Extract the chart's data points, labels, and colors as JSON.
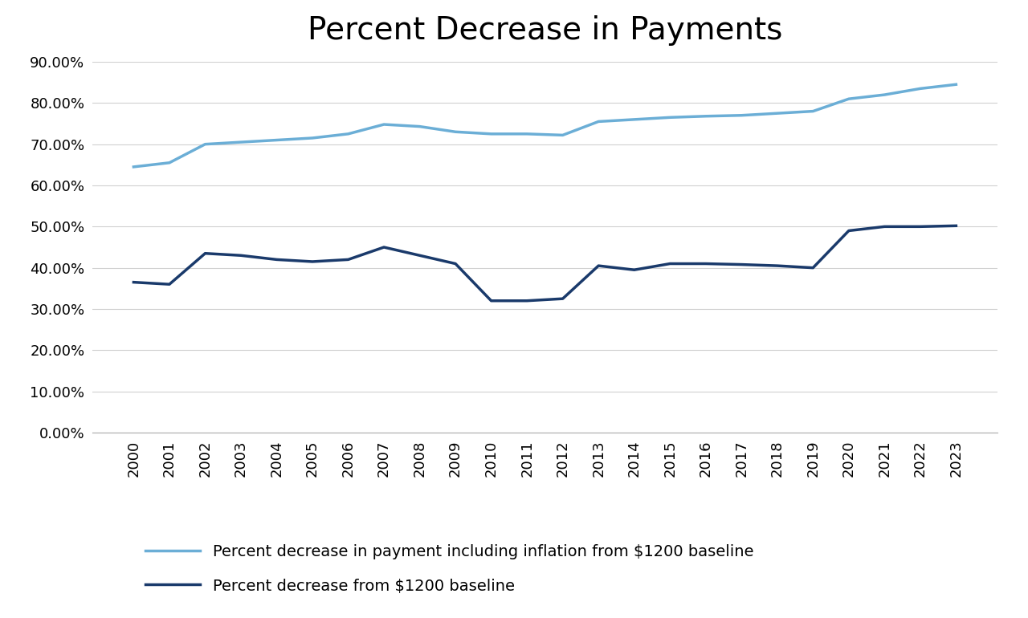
{
  "title": "Percent Decrease in Payments",
  "years": [
    2000,
    2001,
    2002,
    2003,
    2004,
    2005,
    2006,
    2007,
    2008,
    2009,
    2010,
    2011,
    2012,
    2013,
    2014,
    2015,
    2016,
    2017,
    2018,
    2019,
    2020,
    2021,
    2022,
    2023
  ],
  "with_inflation": [
    0.645,
    0.655,
    0.7,
    0.705,
    0.71,
    0.715,
    0.725,
    0.748,
    0.743,
    0.73,
    0.725,
    0.725,
    0.722,
    0.755,
    0.76,
    0.765,
    0.768,
    0.77,
    0.775,
    0.78,
    0.81,
    0.82,
    0.835,
    0.845
  ],
  "without_inflation": [
    0.365,
    0.36,
    0.435,
    0.43,
    0.42,
    0.415,
    0.42,
    0.45,
    0.43,
    0.41,
    0.32,
    0.32,
    0.325,
    0.405,
    0.395,
    0.41,
    0.41,
    0.408,
    0.405,
    0.4,
    0.49,
    0.5,
    0.5,
    0.502
  ],
  "line_color_inflation": "#6baed6",
  "line_color_no_inflation": "#1a3a6b",
  "background_color": "#ffffff",
  "ylim": [
    0.0,
    0.9
  ],
  "yticks": [
    0.0,
    0.1,
    0.2,
    0.3,
    0.4,
    0.5,
    0.6,
    0.7,
    0.8,
    0.9
  ],
  "legend_label_inflation": "Percent decrease in payment including inflation from $1200 baseline",
  "legend_label_no_inflation": "Percent decrease from $1200 baseline",
  "grid_color": "#d0d0d0",
  "line_width": 2.5,
  "title_fontsize": 28,
  "tick_fontsize": 13,
  "legend_fontsize": 14
}
